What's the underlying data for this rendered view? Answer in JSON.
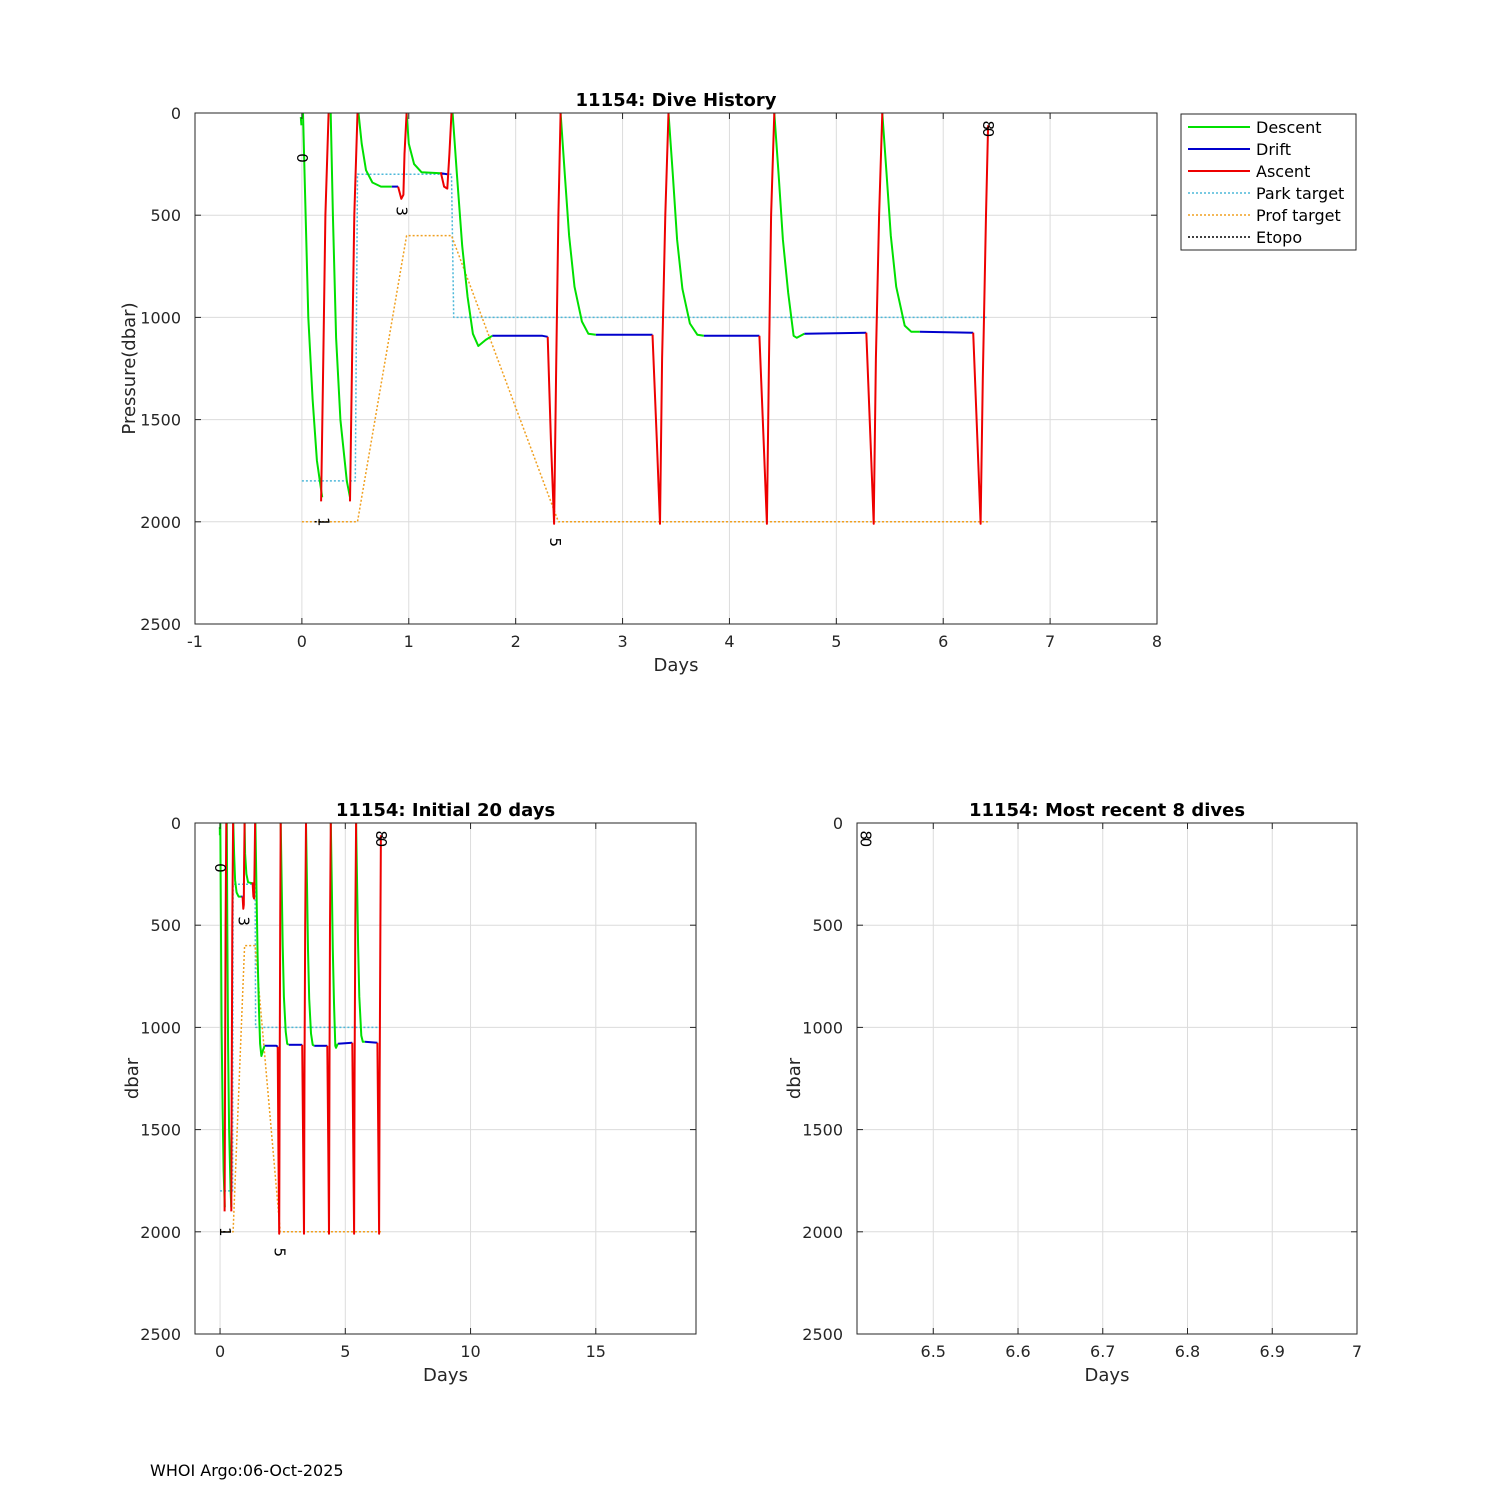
{
  "footer": "WHOI Argo:06-Oct-2025",
  "colors": {
    "descent": "#00e000",
    "drift": "#0000cc",
    "ascent": "#ee0000",
    "park_target": "#4db8d9",
    "prof_target": "#f0a020",
    "etopo": "#000000",
    "grid": "#dcdcdc"
  },
  "legend": {
    "entries": [
      {
        "label": "Descent",
        "style": "solid",
        "color_key": "descent"
      },
      {
        "label": "Drift",
        "style": "solid",
        "color_key": "drift"
      },
      {
        "label": "Ascent",
        "style": "solid",
        "color_key": "ascent"
      },
      {
        "label": "Park target",
        "style": "dotted",
        "color_key": "park_target"
      },
      {
        "label": "Prof target",
        "style": "dotted",
        "color_key": "prof_target"
      },
      {
        "label": "Etopo",
        "style": "dotted",
        "color_key": "etopo"
      }
    ],
    "placement": "outside-right"
  },
  "chart_data": [
    {
      "id": "main",
      "type": "line",
      "title": "11154: Dive History",
      "xlabel": "Days",
      "ylabel": "Pressure(dbar)",
      "xlim": [
        -1,
        8
      ],
      "ylim": [
        0,
        2500
      ],
      "y_reversed": true,
      "xticks": [
        -1,
        0,
        1,
        2,
        3,
        4,
        5,
        6,
        7,
        8
      ],
      "yticks": [
        0,
        500,
        1000,
        1500,
        2000,
        2500
      ],
      "grid": true,
      "legend": true,
      "show_data": true,
      "annotations": [
        {
          "text": "0",
          "x": 0.0,
          "y": 220
        },
        {
          "text": "1",
          "x": 0.2,
          "y": 2000
        },
        {
          "text": "3",
          "x": 0.93,
          "y": 480
        },
        {
          "text": "5",
          "x": 2.37,
          "y": 2100
        },
        {
          "text": "8",
          "x": 6.42,
          "y": 60
        },
        {
          "text": "0",
          "x": 6.42,
          "y": 95
        }
      ]
    },
    {
      "id": "initial",
      "type": "line",
      "title": "11154: Initial 20 days",
      "xlabel": "Days",
      "ylabel": "dbar",
      "xlim": [
        -1,
        19
      ],
      "ylim": [
        0,
        2500
      ],
      "y_reversed": true,
      "xticks": [
        0,
        5,
        10,
        15
      ],
      "yticks": [
        0,
        500,
        1000,
        1500,
        2000,
        2500
      ],
      "grid": true,
      "legend": false,
      "show_data": true,
      "annotations": [
        {
          "text": "0",
          "x": 0.0,
          "y": 220
        },
        {
          "text": "1",
          "x": 0.2,
          "y": 2000
        },
        {
          "text": "3",
          "x": 0.93,
          "y": 480
        },
        {
          "text": "5",
          "x": 2.37,
          "y": 2100
        },
        {
          "text": "8",
          "x": 6.42,
          "y": 60
        },
        {
          "text": "0",
          "x": 6.42,
          "y": 95
        }
      ]
    },
    {
      "id": "recent",
      "type": "line",
      "title": "11154: Most recent 8 dives",
      "xlabel": "Days",
      "ylabel": "dbar",
      "xlim": [
        6.41,
        7
      ],
      "ylim": [
        0,
        2500
      ],
      "y_reversed": true,
      "xticks": [
        6.5,
        6.6,
        6.7,
        6.8,
        6.9,
        7
      ],
      "yticks": [
        0,
        500,
        1000,
        1500,
        2000,
        2500
      ],
      "grid": true,
      "legend": false,
      "show_data": false,
      "annotations": [
        {
          "text": "8",
          "x": 6.42,
          "y": 60
        },
        {
          "text": "0",
          "x": 6.42,
          "y": 95
        }
      ]
    }
  ],
  "series": {
    "descent": [
      [
        [
          -0.01,
          20
        ],
        [
          -0.005,
          60
        ]
      ],
      [
        [
          0.01,
          0
        ],
        [
          0.03,
          400
        ],
        [
          0.06,
          1000
        ],
        [
          0.1,
          1400
        ],
        [
          0.14,
          1700
        ],
        [
          0.19,
          1880
        ]
      ],
      [
        [
          0.27,
          0
        ],
        [
          0.29,
          500
        ],
        [
          0.32,
          1100
        ],
        [
          0.36,
          1500
        ],
        [
          0.42,
          1800
        ],
        [
          0.45,
          1880
        ]
      ],
      [
        [
          0.53,
          0
        ],
        [
          0.56,
          150
        ],
        [
          0.6,
          280
        ],
        [
          0.66,
          340
        ],
        [
          0.74,
          360
        ],
        [
          0.84,
          360
        ]
      ],
      [
        [
          0.98,
          0
        ],
        [
          1.0,
          150
        ],
        [
          1.05,
          250
        ],
        [
          1.12,
          290
        ],
        [
          1.3,
          295
        ]
      ],
      [
        [
          1.41,
          0
        ],
        [
          1.45,
          300
        ],
        [
          1.5,
          650
        ],
        [
          1.55,
          900
        ],
        [
          1.6,
          1080
        ],
        [
          1.65,
          1140
        ],
        [
          1.72,
          1110
        ],
        [
          1.78,
          1090
        ]
      ],
      [
        [
          2.42,
          0
        ],
        [
          2.46,
          300
        ],
        [
          2.5,
          600
        ],
        [
          2.55,
          850
        ],
        [
          2.62,
          1020
        ],
        [
          2.68,
          1080
        ],
        [
          2.75,
          1085
        ]
      ],
      [
        [
          3.43,
          0
        ],
        [
          3.47,
          300
        ],
        [
          3.51,
          620
        ],
        [
          3.56,
          860
        ],
        [
          3.63,
          1030
        ],
        [
          3.7,
          1085
        ],
        [
          3.76,
          1090
        ]
      ],
      [
        [
          4.42,
          0
        ],
        [
          4.46,
          300
        ],
        [
          4.5,
          620
        ],
        [
          4.55,
          880
        ],
        [
          4.6,
          1090
        ],
        [
          4.63,
          1100
        ],
        [
          4.7,
          1080
        ]
      ],
      [
        [
          5.43,
          0
        ],
        [
          5.47,
          300
        ],
        [
          5.51,
          600
        ],
        [
          5.56,
          850
        ],
        [
          5.64,
          1040
        ],
        [
          5.7,
          1070
        ],
        [
          5.78,
          1070
        ]
      ]
    ],
    "drift": [
      [
        [
          0.84,
          360
        ],
        [
          0.9,
          360
        ]
      ],
      [
        [
          1.3,
          295
        ],
        [
          1.36,
          300
        ]
      ],
      [
        [
          1.78,
          1090
        ],
        [
          2.25,
          1090
        ],
        [
          2.3,
          1095
        ]
      ],
      [
        [
          2.75,
          1085
        ],
        [
          3.28,
          1085
        ]
      ],
      [
        [
          3.76,
          1090
        ],
        [
          4.28,
          1090
        ]
      ],
      [
        [
          4.7,
          1080
        ],
        [
          5.28,
          1075
        ]
      ],
      [
        [
          5.78,
          1070
        ],
        [
          6.28,
          1075
        ]
      ]
    ],
    "ascent": [
      [
        [
          0.18,
          1900
        ],
        [
          0.2,
          1200
        ],
        [
          0.22,
          500
        ],
        [
          0.25,
          0
        ]
      ],
      [
        [
          0.45,
          1900
        ],
        [
          0.47,
          1200
        ],
        [
          0.49,
          500
        ],
        [
          0.52,
          0
        ]
      ],
      [
        [
          0.9,
          360
        ],
        [
          0.93,
          420
        ],
        [
          0.95,
          400
        ],
        [
          0.96,
          200
        ],
        [
          0.98,
          0
        ]
      ],
      [
        [
          1.3,
          290
        ],
        [
          1.33,
          360
        ],
        [
          1.36,
          370
        ],
        [
          1.38,
          200
        ],
        [
          1.4,
          0
        ]
      ],
      [
        [
          2.3,
          1095
        ],
        [
          2.33,
          1600
        ],
        [
          2.36,
          2010
        ],
        [
          2.38,
          1200
        ],
        [
          2.4,
          500
        ],
        [
          2.42,
          0
        ]
      ],
      [
        [
          3.28,
          1085
        ],
        [
          3.32,
          1600
        ],
        [
          3.35,
          2010
        ],
        [
          3.37,
          1200
        ],
        [
          3.4,
          500
        ],
        [
          3.43,
          0
        ]
      ],
      [
        [
          4.28,
          1090
        ],
        [
          4.32,
          1600
        ],
        [
          4.35,
          2010
        ],
        [
          4.37,
          1200
        ],
        [
          4.39,
          500
        ],
        [
          4.42,
          0
        ]
      ],
      [
        [
          5.28,
          1075
        ],
        [
          5.32,
          1600
        ],
        [
          5.35,
          2010
        ],
        [
          5.37,
          1200
        ],
        [
          5.4,
          500
        ],
        [
          5.43,
          0
        ]
      ],
      [
        [
          6.28,
          1075
        ],
        [
          6.32,
          1600
        ],
        [
          6.35,
          2010
        ],
        [
          6.37,
          1300
        ],
        [
          6.4,
          500
        ],
        [
          6.42,
          60
        ]
      ]
    ],
    "park_target": [
      [
        [
          0.0,
          1800
        ],
        [
          0.5,
          1800
        ],
        [
          0.52,
          300
        ],
        [
          1.4,
          300
        ],
        [
          1.42,
          1000
        ],
        [
          6.42,
          1000
        ]
      ]
    ],
    "prof_target": [
      [
        [
          0.0,
          2000
        ],
        [
          0.52,
          2000
        ],
        [
          0.98,
          600
        ],
        [
          1.4,
          600
        ],
        [
          2.4,
          2000
        ],
        [
          6.42,
          2000
        ]
      ]
    ],
    "etopo": [
      [
        [
          0.12,
          2000
        ],
        [
          0.2,
          2000
        ]
      ]
    ]
  }
}
